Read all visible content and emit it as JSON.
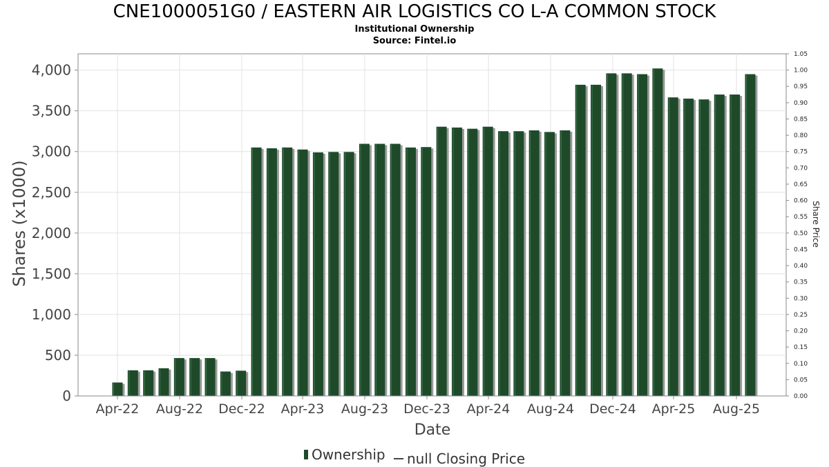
{
  "header": {
    "title": "CNE1000051G0 / EASTERN AIR LOGISTICS CO L-A COMMON STOCK",
    "subtitle": "Institutional Ownership",
    "source": "Source: Fintel.io"
  },
  "legend": {
    "ownership_label": "Ownership",
    "price_label": "null Closing Price"
  },
  "colors": {
    "bar": "#1e4a2a",
    "bar_highlight": "#3f7a4c",
    "bar_shadow": "#9a9a9a",
    "grid": "#e2e2e2",
    "axis": "#888888"
  },
  "chart_data": {
    "type": "bar",
    "title": "CNE1000051G0 / EASTERN AIR LOGISTICS CO L-A COMMON STOCK",
    "xlabel": "Date",
    "ylabel": "Shares (x1000)",
    "y2label": "Share Price",
    "ylim": [
      0,
      4200
    ],
    "y2lim": [
      0,
      1.05
    ],
    "grid": true,
    "legend_position": "bottom",
    "yticks": [
      "0",
      "500",
      "1,000",
      "1,500",
      "2,000",
      "2,500",
      "3,000",
      "3,500",
      "4,000"
    ],
    "ytick_values": [
      0,
      500,
      1000,
      1500,
      2000,
      2500,
      3000,
      3500,
      4000
    ],
    "y2ticks": [
      "0.00",
      "0.05",
      "0.10",
      "0.15",
      "0.20",
      "0.25",
      "0.30",
      "0.35",
      "0.40",
      "0.45",
      "0.50",
      "0.55",
      "0.60",
      "0.65",
      "0.70",
      "0.75",
      "0.80",
      "0.85",
      "0.90",
      "0.95",
      "1.00",
      "1.05"
    ],
    "xticks": [
      "Apr-22",
      "Aug-22",
      "Dec-22",
      "Apr-23",
      "Aug-23",
      "Dec-23",
      "Apr-24",
      "Aug-24",
      "Dec-24",
      "Apr-25",
      "Aug-25"
    ],
    "series": [
      {
        "name": "Ownership",
        "values": [
          165,
          315,
          315,
          340,
          465,
          465,
          465,
          300,
          310,
          3050,
          3040,
          3050,
          3025,
          2990,
          2995,
          2995,
          3095,
          3095,
          3095,
          3050,
          3055,
          3305,
          3295,
          3280,
          3305,
          3250,
          3250,
          3260,
          3240,
          3260,
          3820,
          3820,
          3960,
          3960,
          3950,
          4020,
          3665,
          3650,
          3640,
          3700,
          3700,
          3950
        ]
      }
    ]
  }
}
